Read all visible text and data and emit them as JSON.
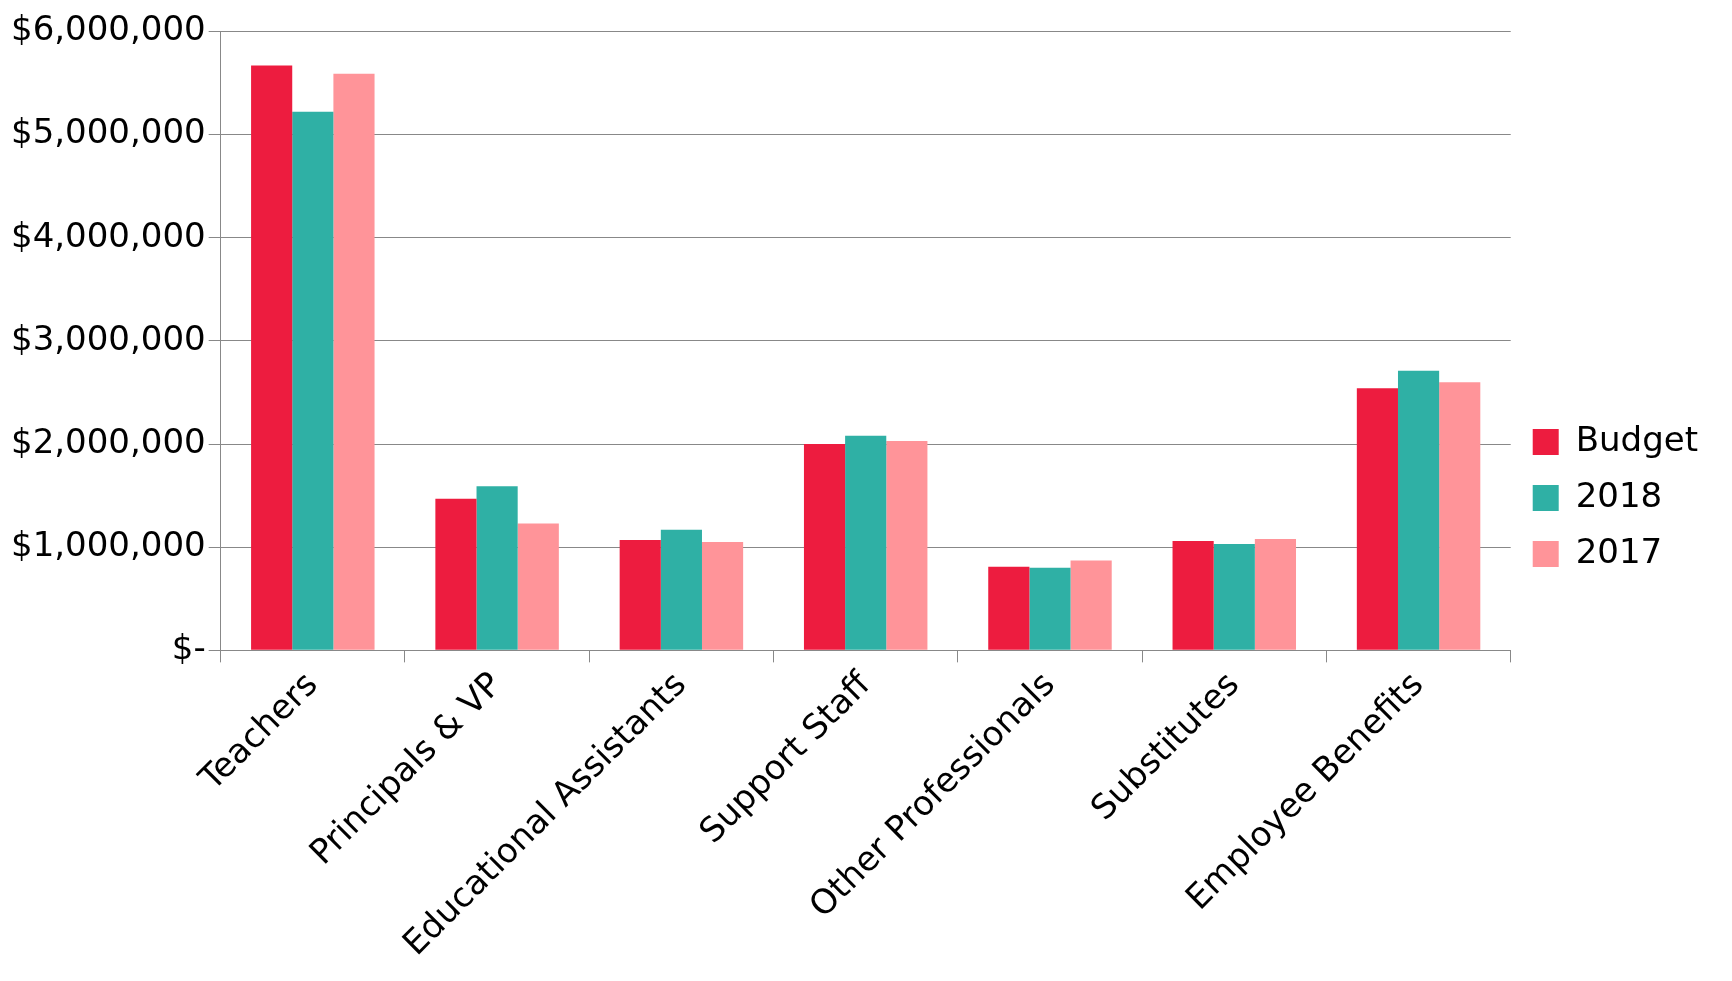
{
  "chart_data": {
    "type": "bar",
    "categories": [
      "Teachers",
      "Principals & VP",
      "Educational Assistants",
      "Support Staff",
      "Other Professionals",
      "Substitutes",
      "Employee Benefits"
    ],
    "series": [
      {
        "name": "Budget",
        "color": "#ed1c3f",
        "values": [
          5670000,
          1470000,
          1070000,
          2000000,
          810000,
          1060000,
          2540000
        ]
      },
      {
        "name": "2018",
        "color": "#2fb0a5",
        "values": [
          5220000,
          1590000,
          1170000,
          2080000,
          800000,
          1030000,
          2710000
        ]
      },
      {
        "name": "2017",
        "color": "#ff9499",
        "values": [
          5590000,
          1230000,
          1050000,
          2030000,
          870000,
          1080000,
          2600000
        ]
      }
    ],
    "ylim": [
      0,
      6000000
    ],
    "yticks": [
      {
        "value": 0,
        "label": "$-"
      },
      {
        "value": 1000000,
        "label": "$1,000,000"
      },
      {
        "value": 2000000,
        "label": "$2,000,000"
      },
      {
        "value": 3000000,
        "label": "$3,000,000"
      },
      {
        "value": 4000000,
        "label": "$4,000,000"
      },
      {
        "value": 5000000,
        "label": "$5,000,000"
      },
      {
        "value": 6000000,
        "label": "$6,000,000"
      }
    ],
    "grid": "y",
    "legend": "right"
  }
}
